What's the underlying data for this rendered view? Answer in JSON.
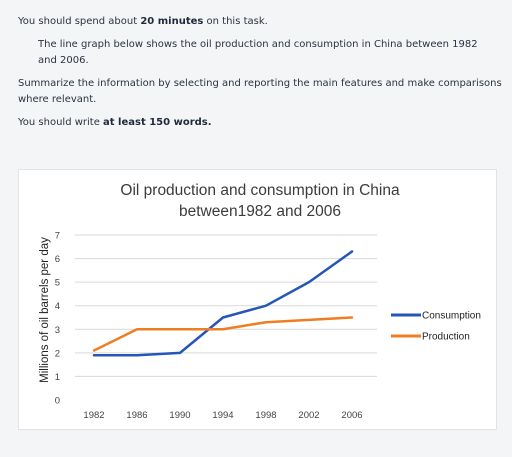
{
  "task": {
    "p1_pre": "You should spend about ",
    "p1_bold": "20 minutes",
    "p1_post": " on this task.",
    "p2": "The line graph below shows the oil production and consumption in China between 1982 and 2006.",
    "p3": "Summarize the information by selecting and reporting the main features and make comparisons where relevant.",
    "p4_pre": "You should write ",
    "p4_bold": "at least 150 words."
  },
  "colors": {
    "consumption": "#2556b8",
    "production": "#ef7d22",
    "grid": "#d9d9d9"
  },
  "chart_data": {
    "type": "line",
    "title_line1": "Oil production and consumption in China",
    "title_line2": "between1982 and 2006",
    "xlabel": "",
    "ylabel": "Millions of oil barrels per day",
    "categories": [
      "1982",
      "1986",
      "1990",
      "1994",
      "1998",
      "2002",
      "2006"
    ],
    "yticks": [
      "0",
      "1",
      "2",
      "3",
      "4",
      "5",
      "6",
      "7"
    ],
    "ylim": [
      0,
      7
    ],
    "grid": true,
    "legend_position": "right",
    "series": [
      {
        "name": "Consumption",
        "values": [
          1.9,
          1.9,
          2.0,
          3.5,
          4.0,
          5.0,
          6.3
        ]
      },
      {
        "name": "Production",
        "values": [
          2.1,
          3.0,
          3.0,
          3.0,
          3.3,
          3.4,
          3.5
        ]
      }
    ]
  }
}
